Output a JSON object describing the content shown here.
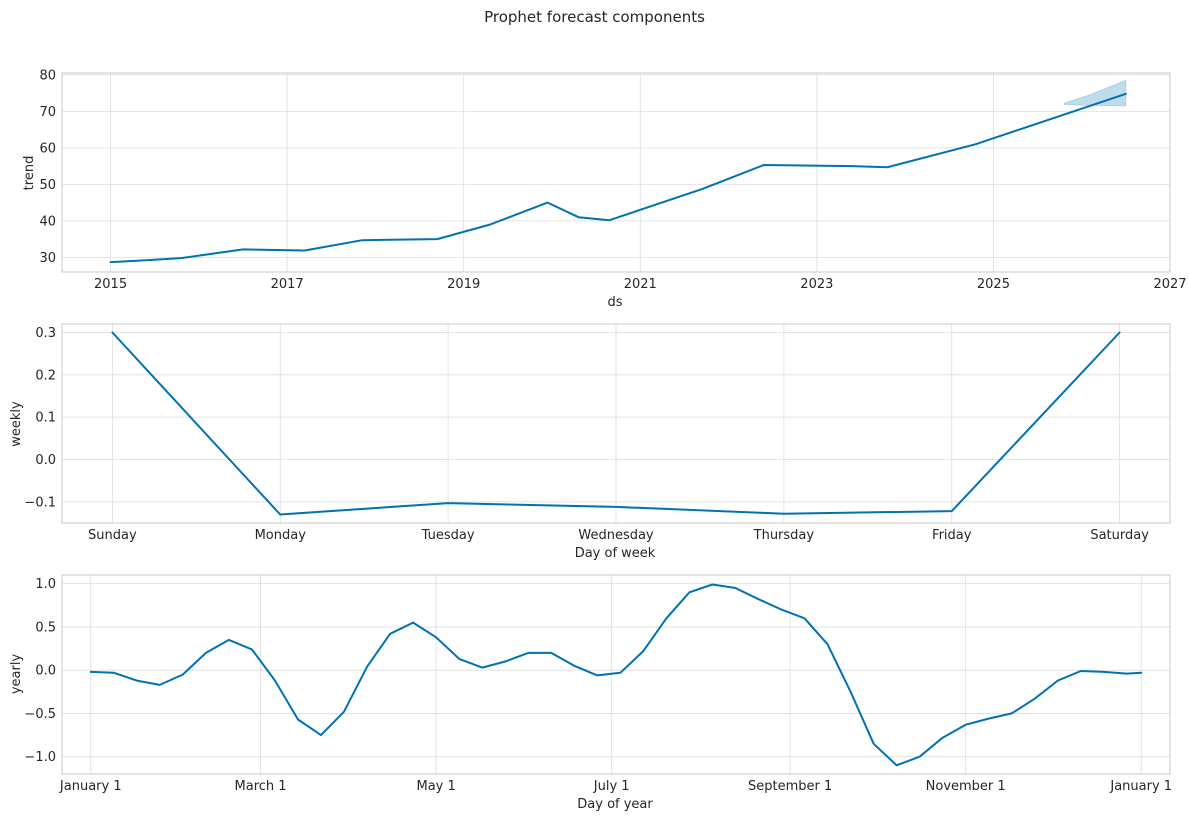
{
  "figure": {
    "title": "Prophet forecast components"
  },
  "colors": {
    "series": "#0072b2",
    "band": "#0072b2",
    "grid": "#dddddd",
    "frame": "#c8c8c8"
  },
  "chart_data": [
    {
      "type": "line",
      "ylabel": "trend",
      "xlabel": "ds",
      "xlim": [
        2014.45,
        2027.0
      ],
      "ylim": [
        26,
        80.5
      ],
      "xticks": [
        2015,
        2017,
        2019,
        2021,
        2023,
        2025,
        2027
      ],
      "xtick_labels": [
        "2015",
        "2017",
        "2019",
        "2021",
        "2023",
        "2025",
        "2027"
      ],
      "yticks": [
        30,
        40,
        50,
        60,
        70,
        80
      ],
      "ytick_labels": [
        "30",
        "40",
        "50",
        "60",
        "70",
        "80"
      ],
      "grid": true,
      "series": [
        {
          "x": [
            2015.0,
            2015.4,
            2015.8,
            2016.5,
            2017.2,
            2017.85,
            2018.7,
            2019.3,
            2019.95,
            2020.3,
            2020.65,
            2021.7,
            2022.4,
            2023.4,
            2023.8,
            2024.8,
            2026.5
          ],
          "y": [
            28.7,
            29.2,
            29.8,
            32.2,
            31.9,
            34.7,
            35.0,
            39.0,
            45.0,
            41.0,
            40.2,
            48.7,
            55.3,
            55.0,
            54.7,
            61.0,
            74.8
          ]
        }
      ],
      "uncertainty": {
        "x": [
          2025.8,
          2026.1,
          2026.5
        ],
        "upper": [
          72.2,
          74.6,
          78.5
        ],
        "lower": [
          71.9,
          71.6,
          71.5
        ]
      }
    },
    {
      "type": "line",
      "ylabel": "weekly",
      "xlabel": "Day of week",
      "ylim": [
        -0.15,
        0.32
      ],
      "categories": [
        "Sunday",
        "Monday",
        "Tuesday",
        "Wednesday",
        "Thursday",
        "Friday",
        "Saturday"
      ],
      "yticks": [
        -0.1,
        0.0,
        0.1,
        0.2,
        0.3
      ],
      "ytick_labels": [
        "−0.1",
        "0.0",
        "0.1",
        "0.2",
        "0.3"
      ],
      "grid": true,
      "series": [
        {
          "values": [
            0.3,
            -0.13,
            -0.103,
            -0.112,
            -0.128,
            -0.122,
            0.3
          ]
        }
      ]
    },
    {
      "type": "line",
      "ylabel": "yearly",
      "xlabel": "Day of year",
      "xlim": [
        -10,
        375
      ],
      "ylim": [
        -1.2,
        1.1
      ],
      "xticks": [
        0,
        59,
        120,
        181,
        243,
        304,
        365
      ],
      "xtick_labels": [
        "January 1",
        "March 1",
        "May 1",
        "July 1",
        "September 1",
        "November 1",
        "January 1"
      ],
      "yticks": [
        -1.0,
        -0.5,
        0.0,
        0.5,
        1.0
      ],
      "ytick_labels": [
        "−1.0",
        "−0.5",
        "0.0",
        "0.5",
        "1.0"
      ],
      "grid": true,
      "series": [
        {
          "x": [
            0,
            8,
            16,
            24,
            32,
            40,
            48,
            56,
            64,
            72,
            80,
            88,
            96,
            104,
            112,
            120,
            128,
            136,
            144,
            152,
            160,
            168,
            176,
            184,
            192,
            200,
            208,
            216,
            224,
            232,
            240,
            248,
            256,
            264,
            272,
            280,
            288,
            296,
            304,
            312,
            320,
            328,
            336,
            344,
            352,
            360,
            365
          ],
          "y": [
            -0.02,
            -0.03,
            -0.12,
            -0.17,
            -0.05,
            0.2,
            0.35,
            0.24,
            -0.12,
            -0.57,
            -0.75,
            -0.48,
            0.04,
            0.42,
            0.55,
            0.38,
            0.13,
            0.03,
            0.1,
            0.2,
            0.2,
            0.05,
            -0.06,
            -0.03,
            0.22,
            0.6,
            0.9,
            0.99,
            0.95,
            0.82,
            0.7,
            0.6,
            0.3,
            -0.25,
            -0.85,
            -1.1,
            -1.0,
            -0.78,
            -0.63,
            -0.56,
            -0.5,
            -0.33,
            -0.12,
            -0.01,
            -0.02,
            -0.04,
            -0.03
          ]
        }
      ]
    }
  ]
}
